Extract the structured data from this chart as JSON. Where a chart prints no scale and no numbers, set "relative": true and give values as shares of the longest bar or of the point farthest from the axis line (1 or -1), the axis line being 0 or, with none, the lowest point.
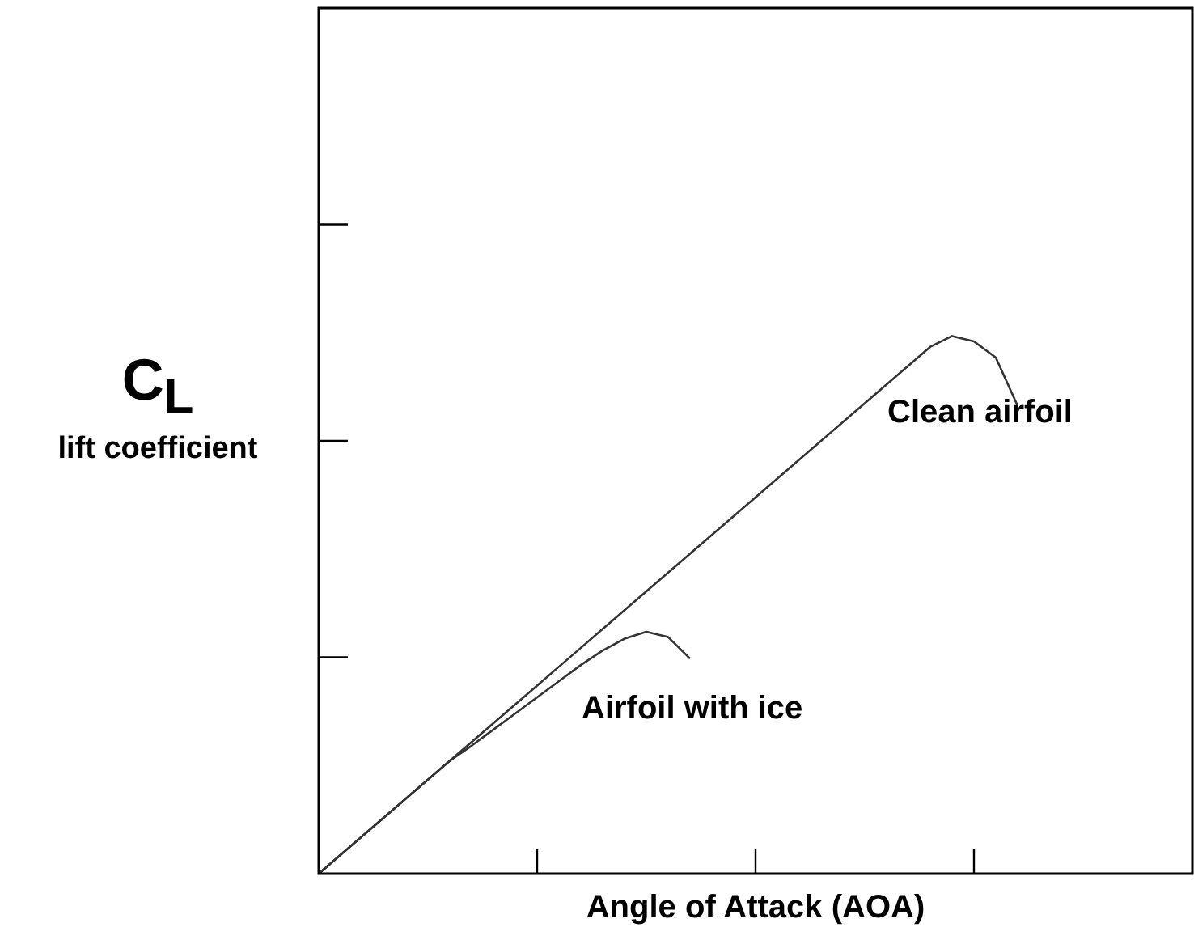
{
  "chart_data": {
    "type": "line",
    "relative": true,
    "xlabel": "Angle of Attack (AOA)",
    "ylabel": "C$_{L}$\nlift coefficient",
    "categories": [
      null,
      null,
      null,
      null,
      null,
      null,
      null,
      null,
      null,
      null,
      null,
      null,
      null,
      null,
      null,
      null,
      null,
      null,
      null,
      null,
      null,
      null,
      null,
      null,
      null,
      null,
      null,
      null,
      null,
      null,
      null,
      null,
      null,
      null,
      null,
      null,
      null,
      null,
      null,
      null,
      null
    ],
    "series": [
      {
        "name": "Clean airfoil",
        "color": "#333333",
        "values": [
          0,
          0.035,
          0.07,
          0.105,
          0.14,
          0.175,
          0.21,
          0.245,
          0.28,
          0.315,
          0.35,
          0.385,
          0.42,
          0.455,
          0.49,
          0.525,
          0.56,
          0.595,
          0.63,
          0.665,
          0.7,
          0.735,
          0.77,
          0.805,
          0.84,
          0.875,
          0.91,
          0.945,
          0.98,
          1,
          0.99,
          0.96,
          0.87,
          null,
          null,
          null,
          null,
          null,
          null,
          null,
          null
        ]
      },
      {
        "name": "Airfoil with ice",
        "color": "#333333",
        "values": [
          0,
          0.035,
          0.07,
          0.105,
          0.14,
          0.175,
          0.21,
          0.238,
          0.268,
          0.298,
          0.328,
          0.358,
          0.388,
          0.415,
          0.437,
          0.45,
          0.44,
          0.4,
          null,
          null,
          null,
          null,
          null,
          null,
          null,
          null,
          null,
          null,
          null,
          null,
          null,
          null,
          null,
          null,
          null,
          null,
          null,
          null,
          null,
          null,
          null
        ]
      }
    ],
    "legend": false,
    "marker": "none",
    "line_style": "solid"
  }
}
